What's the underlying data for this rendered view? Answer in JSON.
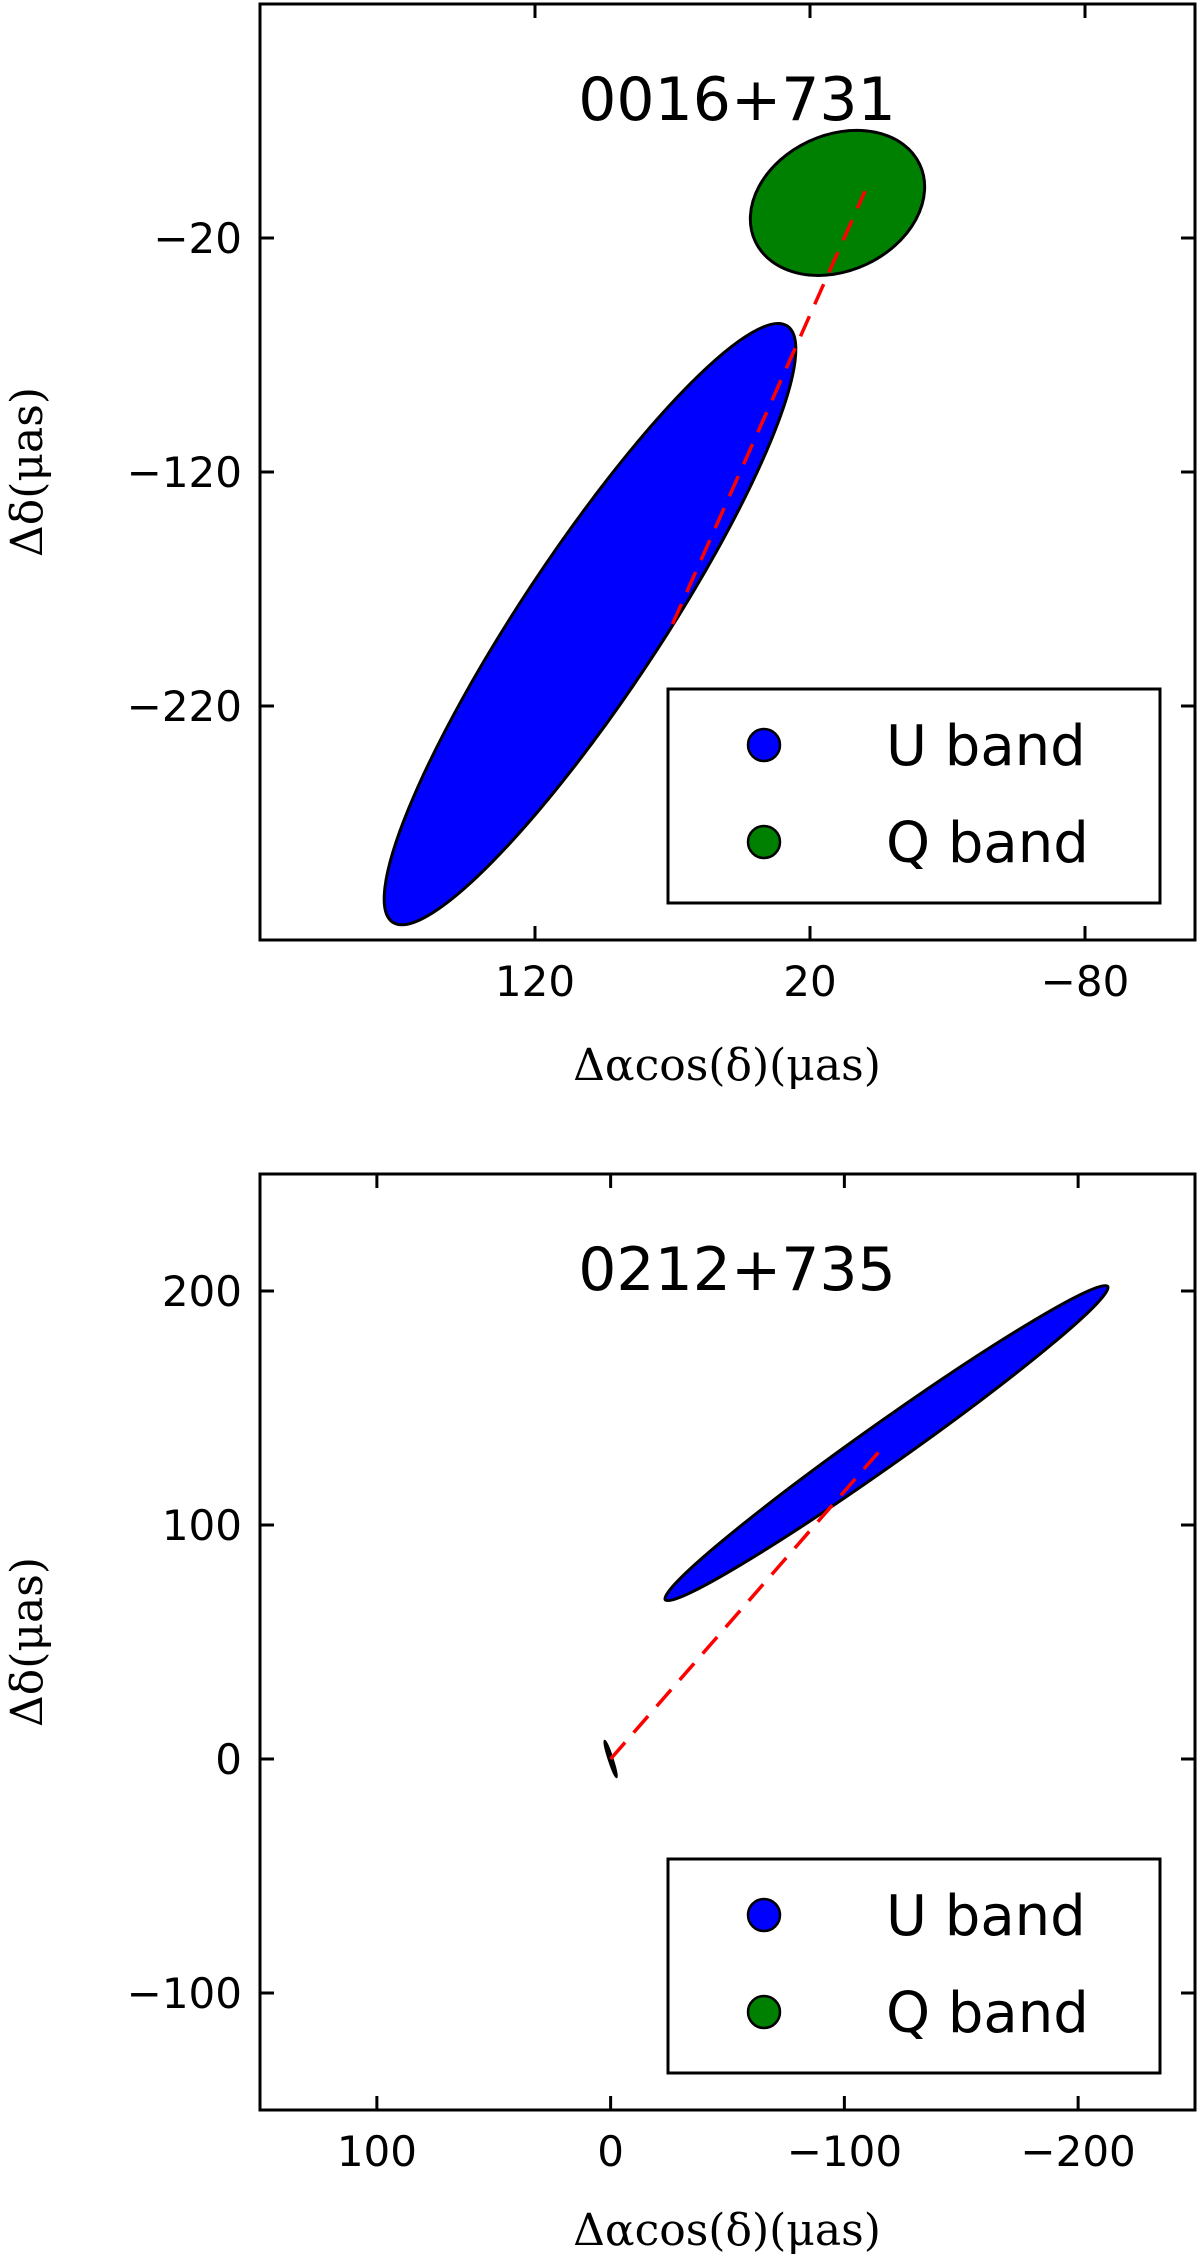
{
  "chart_data": [
    {
      "type": "scatter",
      "title": "0016+731",
      "xlabel": "Δαcos(δ)(μas)",
      "ylabel": "Δδ(μas)",
      "xlim": [
        220,
        -120
      ],
      "ylim": [
        -320,
        80
      ],
      "x_ticks": [
        120,
        20,
        -80
      ],
      "x_tick_labels": [
        "120",
        "20",
        "−80"
      ],
      "y_ticks": [
        -20,
        -120,
        -220
      ],
      "y_tick_labels": [
        "−20",
        "−120",
        "−220"
      ],
      "grid": false,
      "legend_position": "lower-right",
      "legend": [
        {
          "label": "U band",
          "color": "#0000ff"
        },
        {
          "label": "Q band",
          "color": "#008000"
        }
      ],
      "series": [
        {
          "name": "U band",
          "color": "#0000ff",
          "center": [
            100,
            -185
          ],
          "rx": 130,
          "ry": 30,
          "angle_deg": 56.5
        },
        {
          "name": "Q band",
          "color": "#008000",
          "center": [
            10,
            -5
          ],
          "rx": 33,
          "ry": 29,
          "angle_deg": 25
        }
      ],
      "offset_line": {
        "color": "#ff0000",
        "style": "dashed",
        "from": [
          70,
          -185
        ],
        "to": [
          0,
          0
        ]
      }
    },
    {
      "type": "scatter",
      "title": "0212+735",
      "xlabel": "Δαcos(δ)(μas)",
      "ylabel": "Δδ(μas)",
      "xlim": [
        150,
        -250
      ],
      "ylim": [
        -150,
        250
      ],
      "x_ticks": [
        100,
        0,
        -100,
        -200
      ],
      "x_tick_labels": [
        "100",
        "0",
        "−100",
        "−200"
      ],
      "y_ticks": [
        200,
        100,
        0,
        -100
      ],
      "y_tick_labels": [
        "200",
        "100",
        "0",
        "−100"
      ],
      "grid": false,
      "legend_position": "lower-right",
      "legend": [
        {
          "label": "U band",
          "color": "#0000ff"
        },
        {
          "label": "Q band",
          "color": "#008000"
        }
      ],
      "series": [
        {
          "name": "U band",
          "color": "#0000ff",
          "center": [
            -118,
            135
          ],
          "rx": 116,
          "ry": 9,
          "angle_deg": 35.3
        },
        {
          "name": "Q band",
          "color": "#008000",
          "center": [
            0,
            0
          ],
          "rx": 8,
          "ry": 0.6,
          "angle_deg": -72
        }
      ],
      "offset_line": {
        "color": "#ff0000",
        "style": "dashed",
        "from": [
          0,
          0
        ],
        "to": [
          -118,
          135
        ]
      }
    }
  ]
}
